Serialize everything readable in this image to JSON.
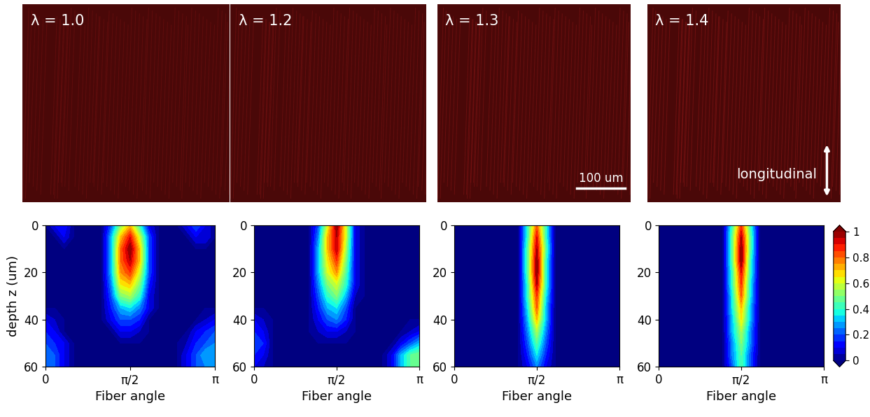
{
  "images": [
    {
      "label": "λ = 1.0"
    },
    {
      "label": "λ = 1.2"
    },
    {
      "label": "λ = 1.3",
      "annotation": "100 um"
    },
    {
      "label": "λ = 1.4",
      "annotation": "longitudinal"
    }
  ],
  "chart_data": [
    {
      "type": "heatmap",
      "xlabel": "Fiber angle",
      "ylabel": "depth z (um)",
      "x": [
        0,
        0.1745,
        0.3491,
        0.5236,
        0.6981,
        0.8727,
        1.0472,
        1.2217,
        1.3963,
        1.5708,
        1.7453,
        1.9199,
        2.0944,
        2.2689,
        2.4435,
        2.618,
        2.7925,
        2.967,
        3.1416
      ],
      "y": [
        0,
        5,
        10,
        15,
        20,
        25,
        30,
        35,
        40,
        45,
        50,
        55,
        60
      ],
      "xlim": [
        0,
        3.1416
      ],
      "xticks": [
        0,
        {
          "value": 1.5708,
          "label": "π/2"
        },
        {
          "value": 3.1416,
          "label": "π"
        }
      ],
      "ylim": [
        60,
        0
      ],
      "yticks": [
        0,
        20,
        40,
        60
      ],
      "cells": [
        [
          0,
          0.1,
          0.15,
          0,
          0,
          0,
          0,
          0.2,
          0.5,
          0.7,
          0.4,
          0.1,
          0,
          0,
          0,
          0.1,
          0.2,
          0.1,
          0
        ],
        [
          0,
          0,
          0.1,
          0,
          0,
          0,
          0,
          0.3,
          0.7,
          0.9,
          0.6,
          0.2,
          0,
          0,
          0,
          0,
          0.1,
          0.1,
          0
        ],
        [
          0,
          0,
          0,
          0,
          0,
          0,
          0,
          0.3,
          0.8,
          1.0,
          0.7,
          0.2,
          0,
          0,
          0,
          0,
          0,
          0,
          0
        ],
        [
          0,
          0,
          0,
          0,
          0,
          0,
          0,
          0.3,
          0.8,
          0.95,
          0.7,
          0.2,
          0,
          0,
          0,
          0,
          0,
          0,
          0
        ],
        [
          0,
          0,
          0,
          0,
          0,
          0,
          0,
          0.3,
          0.75,
          0.85,
          0.6,
          0.2,
          0,
          0,
          0,
          0,
          0,
          0,
          0
        ],
        [
          0,
          0,
          0,
          0,
          0,
          0,
          0,
          0.25,
          0.65,
          0.7,
          0.5,
          0.15,
          0,
          0,
          0,
          0,
          0,
          0,
          0
        ],
        [
          0,
          0,
          0,
          0,
          0,
          0,
          0,
          0.2,
          0.5,
          0.55,
          0.4,
          0.1,
          0,
          0,
          0,
          0,
          0,
          0,
          0
        ],
        [
          0,
          0,
          0,
          0,
          0,
          0,
          0,
          0.15,
          0.3,
          0.35,
          0.25,
          0.1,
          0,
          0,
          0,
          0,
          0,
          0,
          0
        ],
        [
          0.1,
          0.05,
          0,
          0,
          0,
          0,
          0,
          0.1,
          0.2,
          0.2,
          0.15,
          0,
          0,
          0,
          0,
          0,
          0,
          0.05,
          0.1
        ],
        [
          0.15,
          0.1,
          0,
          0,
          0,
          0,
          0,
          0,
          0.1,
          0.1,
          0.05,
          0,
          0,
          0,
          0,
          0,
          0.1,
          0.15,
          0.2
        ],
        [
          0.2,
          0.15,
          0.1,
          0,
          0,
          0,
          0,
          0,
          0,
          0,
          0,
          0,
          0,
          0,
          0,
          0.05,
          0.15,
          0.2,
          0.25
        ],
        [
          0.25,
          0.2,
          0.1,
          0,
          0,
          0,
          0,
          0,
          0,
          0,
          0,
          0,
          0,
          0,
          0,
          0.1,
          0.2,
          0.3,
          0.3
        ],
        [
          0.25,
          0.2,
          0.1,
          0,
          0,
          0,
          0,
          0,
          0,
          0,
          0,
          0,
          0,
          0,
          0,
          0.1,
          0.2,
          0.25,
          0.3
        ]
      ]
    },
    {
      "type": "heatmap",
      "xlabel": "Fiber angle",
      "x": [
        0,
        0.1745,
        0.3491,
        0.5236,
        0.6981,
        0.8727,
        1.0472,
        1.2217,
        1.3963,
        1.5708,
        1.7453,
        1.9199,
        2.0944,
        2.2689,
        2.4435,
        2.618,
        2.7925,
        2.967,
        3.1416
      ],
      "y": [
        0,
        5,
        10,
        15,
        20,
        25,
        30,
        35,
        40,
        45,
        50,
        55,
        60
      ],
      "xlim": [
        0,
        3.1416
      ],
      "xticks": [
        0,
        {
          "value": 1.5708,
          "label": "π/2"
        },
        {
          "value": 3.1416,
          "label": "π"
        }
      ],
      "ylim": [
        60,
        0
      ],
      "yticks": [
        0,
        20,
        40,
        60
      ],
      "cells": [
        [
          0,
          0,
          0,
          0,
          0,
          0,
          0,
          0.2,
          0.6,
          1.0,
          0.6,
          0.1,
          0,
          0,
          0,
          0,
          0,
          0,
          0
        ],
        [
          0,
          0,
          0,
          0,
          0,
          0,
          0,
          0.25,
          0.7,
          0.95,
          0.6,
          0.1,
          0,
          0,
          0,
          0,
          0,
          0,
          0
        ],
        [
          0,
          0,
          0,
          0,
          0,
          0,
          0,
          0.3,
          0.7,
          0.95,
          0.55,
          0.1,
          0,
          0,
          0,
          0,
          0,
          0,
          0
        ],
        [
          0,
          0,
          0,
          0,
          0,
          0,
          0,
          0.3,
          0.65,
          0.85,
          0.5,
          0.1,
          0,
          0,
          0,
          0,
          0,
          0,
          0
        ],
        [
          0,
          0,
          0,
          0,
          0,
          0,
          0,
          0.3,
          0.6,
          0.75,
          0.45,
          0.1,
          0,
          0,
          0,
          0,
          0,
          0,
          0
        ],
        [
          0,
          0,
          0,
          0,
          0,
          0,
          0,
          0.25,
          0.5,
          0.6,
          0.4,
          0.1,
          0,
          0,
          0,
          0,
          0,
          0,
          0
        ],
        [
          0,
          0,
          0,
          0,
          0,
          0,
          0,
          0.2,
          0.4,
          0.5,
          0.3,
          0.05,
          0,
          0,
          0,
          0,
          0,
          0,
          0
        ],
        [
          0,
          0,
          0,
          0,
          0,
          0,
          0,
          0.15,
          0.3,
          0.35,
          0.2,
          0,
          0,
          0,
          0,
          0,
          0,
          0,
          0
        ],
        [
          0.1,
          0.05,
          0,
          0,
          0,
          0,
          0,
          0.1,
          0.2,
          0.25,
          0.15,
          0,
          0,
          0,
          0,
          0,
          0,
          0,
          0
        ],
        [
          0.15,
          0.1,
          0,
          0,
          0,
          0,
          0,
          0.05,
          0.1,
          0.1,
          0.05,
          0,
          0,
          0,
          0,
          0,
          0,
          0.05,
          0.1
        ],
        [
          0.2,
          0.15,
          0,
          0,
          0,
          0,
          0,
          0,
          0,
          0,
          0,
          0,
          0,
          0,
          0,
          0,
          0.1,
          0.2,
          0.3
        ],
        [
          0.15,
          0.1,
          0,
          0,
          0,
          0,
          0,
          0,
          0,
          0,
          0,
          0,
          0,
          0,
          0,
          0.1,
          0.3,
          0.45,
          0.5
        ],
        [
          0.1,
          0.05,
          0,
          0,
          0,
          0,
          0,
          0,
          0,
          0,
          0,
          0,
          0,
          0,
          0,
          0.1,
          0.3,
          0.45,
          0.5
        ]
      ]
    },
    {
      "type": "heatmap",
      "xlabel": "Fiber angle",
      "x": [
        0,
        0.1745,
        0.3491,
        0.5236,
        0.6981,
        0.8727,
        1.0472,
        1.2217,
        1.3963,
        1.5708,
        1.7453,
        1.9199,
        2.0944,
        2.2689,
        2.4435,
        2.618,
        2.7925,
        2.967,
        3.1416
      ],
      "y": [
        0,
        5,
        10,
        15,
        20,
        25,
        30,
        35,
        40,
        45,
        50,
        55,
        60
      ],
      "xlim": [
        0,
        3.1416
      ],
      "xticks": [
        0,
        {
          "value": 1.5708,
          "label": "π/2"
        },
        {
          "value": 3.1416,
          "label": "π"
        }
      ],
      "ylim": [
        60,
        0
      ],
      "yticks": [
        0,
        20,
        40,
        60
      ],
      "cells": [
        [
          0,
          0,
          0,
          0,
          0,
          0,
          0,
          0,
          0.4,
          0.8,
          0.4,
          0,
          0,
          0,
          0,
          0,
          0,
          0,
          0
        ],
        [
          0,
          0,
          0,
          0,
          0,
          0,
          0,
          0,
          0.4,
          0.9,
          0.4,
          0,
          0,
          0,
          0,
          0,
          0,
          0,
          0
        ],
        [
          0,
          0,
          0,
          0,
          0,
          0,
          0,
          0,
          0.45,
          0.95,
          0.45,
          0,
          0,
          0,
          0,
          0,
          0,
          0,
          0
        ],
        [
          0,
          0,
          0,
          0,
          0,
          0,
          0,
          0,
          0.45,
          1.0,
          0.4,
          0,
          0,
          0,
          0,
          0,
          0,
          0,
          0
        ],
        [
          0,
          0,
          0,
          0,
          0,
          0,
          0,
          0,
          0.45,
          1.0,
          0.4,
          0,
          0,
          0,
          0,
          0,
          0,
          0,
          0
        ],
        [
          0,
          0,
          0,
          0,
          0,
          0,
          0,
          0,
          0.4,
          0.95,
          0.4,
          0,
          0,
          0,
          0,
          0,
          0,
          0,
          0
        ],
        [
          0,
          0,
          0,
          0,
          0,
          0,
          0,
          0,
          0.4,
          0.85,
          0.35,
          0,
          0,
          0,
          0,
          0,
          0,
          0,
          0
        ],
        [
          0,
          0,
          0,
          0,
          0,
          0,
          0,
          0,
          0.35,
          0.8,
          0.3,
          0,
          0,
          0,
          0,
          0,
          0,
          0,
          0
        ],
        [
          0,
          0,
          0,
          0,
          0,
          0,
          0,
          0,
          0.3,
          0.7,
          0.3,
          0,
          0,
          0,
          0,
          0,
          0,
          0,
          0
        ],
        [
          0,
          0,
          0,
          0,
          0,
          0,
          0,
          0,
          0.25,
          0.55,
          0.25,
          0,
          0,
          0,
          0,
          0,
          0,
          0,
          0
        ],
        [
          0,
          0,
          0,
          0,
          0,
          0,
          0,
          0,
          0.2,
          0.45,
          0.2,
          0,
          0,
          0,
          0,
          0,
          0,
          0,
          0
        ],
        [
          0,
          0,
          0,
          0,
          0,
          0,
          0,
          0,
          0.15,
          0.35,
          0.15,
          0,
          0,
          0,
          0,
          0,
          0,
          0,
          0
        ],
        [
          0,
          0,
          0,
          0,
          0,
          0,
          0,
          0,
          0.1,
          0.25,
          0.1,
          0,
          0,
          0,
          0,
          0,
          0,
          0,
          0
        ]
      ]
    },
    {
      "type": "heatmap",
      "xlabel": "Fiber angle",
      "x": [
        0,
        0.1745,
        0.3491,
        0.5236,
        0.6981,
        0.8727,
        1.0472,
        1.2217,
        1.3963,
        1.5708,
        1.7453,
        1.9199,
        2.0944,
        2.2689,
        2.4435,
        2.618,
        2.7925,
        2.967,
        3.1416
      ],
      "y": [
        0,
        5,
        10,
        15,
        20,
        25,
        30,
        35,
        40,
        45,
        50,
        55,
        60
      ],
      "xlim": [
        0,
        3.1416
      ],
      "xticks": [
        0,
        {
          "value": 1.5708,
          "label": "π/2"
        },
        {
          "value": 3.1416,
          "label": "π"
        }
      ],
      "ylim": [
        60,
        0
      ],
      "yticks": [
        0,
        20,
        40,
        60
      ],
      "colorbar": {
        "lim": [
          0,
          1
        ],
        "ticks": [
          0,
          0.2,
          0.4,
          0.6,
          0.8,
          1
        ]
      },
      "cells": [
        [
          0,
          0,
          0,
          0,
          0,
          0,
          0,
          0,
          0.4,
          0.85,
          0.4,
          0,
          0,
          0,
          0,
          0,
          0,
          0,
          0
        ],
        [
          0,
          0,
          0,
          0,
          0,
          0,
          0,
          0,
          0.45,
          0.95,
          0.45,
          0,
          0,
          0,
          0,
          0,
          0,
          0,
          0
        ],
        [
          0,
          0,
          0,
          0,
          0,
          0,
          0,
          0,
          0.45,
          1.0,
          0.45,
          0,
          0,
          0,
          0,
          0,
          0,
          0,
          0
        ],
        [
          0,
          0,
          0,
          0,
          0,
          0,
          0,
          0,
          0.45,
          1.0,
          0.4,
          0,
          0,
          0,
          0,
          0,
          0,
          0,
          0
        ],
        [
          0,
          0,
          0,
          0,
          0,
          0,
          0,
          0,
          0.4,
          0.9,
          0.4,
          0,
          0,
          0,
          0,
          0,
          0,
          0,
          0
        ],
        [
          0,
          0,
          0,
          0,
          0,
          0,
          0,
          0,
          0.4,
          0.85,
          0.35,
          0,
          0,
          0,
          0,
          0,
          0,
          0,
          0
        ],
        [
          0,
          0,
          0,
          0,
          0,
          0,
          0,
          0,
          0.35,
          0.8,
          0.35,
          0,
          0,
          0,
          0,
          0,
          0,
          0,
          0
        ],
        [
          0,
          0,
          0,
          0,
          0,
          0,
          0,
          0,
          0.35,
          0.7,
          0.3,
          0,
          0,
          0,
          0,
          0,
          0,
          0,
          0
        ],
        [
          0,
          0,
          0,
          0,
          0,
          0,
          0,
          0,
          0.3,
          0.65,
          0.3,
          0,
          0,
          0,
          0,
          0,
          0,
          0,
          0
        ],
        [
          0,
          0,
          0,
          0,
          0,
          0,
          0,
          0,
          0.3,
          0.55,
          0.25,
          0,
          0,
          0,
          0,
          0,
          0,
          0,
          0
        ],
        [
          0,
          0,
          0,
          0,
          0,
          0,
          0,
          0,
          0.25,
          0.5,
          0.25,
          0,
          0,
          0,
          0,
          0,
          0,
          0,
          0
        ],
        [
          0,
          0,
          0,
          0,
          0,
          0,
          0,
          0,
          0.25,
          0.45,
          0.2,
          0,
          0,
          0,
          0,
          0,
          0,
          0,
          0
        ],
        [
          0,
          0,
          0,
          0,
          0,
          0,
          0,
          0,
          0.2,
          0.45,
          0.2,
          0,
          0,
          0,
          0,
          0,
          0,
          0,
          0
        ]
      ]
    }
  ]
}
